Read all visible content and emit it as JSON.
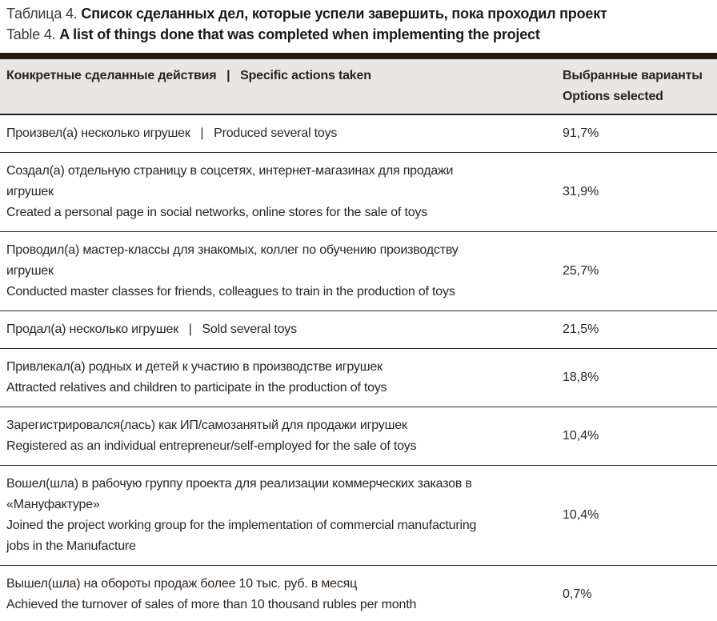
{
  "title": {
    "ru_prefix": "Таблица 4. ",
    "ru_main": "Список сделанных дел, которые успели завершить, пока проходил проект",
    "en_prefix": "Table 4. ",
    "en_main": "A list of things done that was completed when implementing the project"
  },
  "table": {
    "header": {
      "actions_label": "Конкретные сделанные действия   |   Specific actions taken",
      "options_label_ru": "Выбранные варианты",
      "options_label_en": "Options selected"
    },
    "rows": [
      {
        "lines": [
          "Произвел(а) несколько игрушек   |   Produced several toys"
        ],
        "value": "91,7%"
      },
      {
        "lines": [
          "Создал(а) отдельную страницу в соцсетях, интернет-магазинах для продажи",
          "игрушек",
          "Created a personal page in social networks, online stores for the sale of toys"
        ],
        "value": "31,9%"
      },
      {
        "lines": [
          "Проводил(а) мастер-классы для знакомых, коллег по обучению производству",
          "игрушек",
          "Conducted master classes for friends, colleagues to train in the production of toys"
        ],
        "value": "25,7%"
      },
      {
        "lines": [
          "Продал(а) несколько игрушек   |   Sold several toys"
        ],
        "value": "21,5%"
      },
      {
        "lines": [
          "Привлекал(а) родных и детей к участию в производстве игрушек",
          "Attracted relatives and children to participate in the production of toys"
        ],
        "value": "18,8%"
      },
      {
        "lines": [
          "Зарегистрировался(лась) как ИП/самозанятый для продажи игрушек",
          "Registered as an individual entrepreneur/self-employed for the sale of toys"
        ],
        "value": "10,4%"
      },
      {
        "lines": [
          "Вошел(шла) в рабочую группу проекта для реализации коммерческих заказов в",
          "«Мануфактуре»",
          "Joined the project working group for the implementation of commercial manufacturing",
          "jobs in the Manufacture"
        ],
        "value": "10,4%"
      },
      {
        "lines": [
          "Вышел(шла) на обороты продаж более 10 тыс. руб. в месяц",
          "Achieved the turnover of sales of more than 10 thousand rubles per month"
        ],
        "value": "0,7%"
      }
    ]
  },
  "colors": {
    "rule_dark": "#261810",
    "header_bg": "#e9e7e5",
    "body_text": "#2f2620",
    "title_text": "#1c1a18"
  }
}
